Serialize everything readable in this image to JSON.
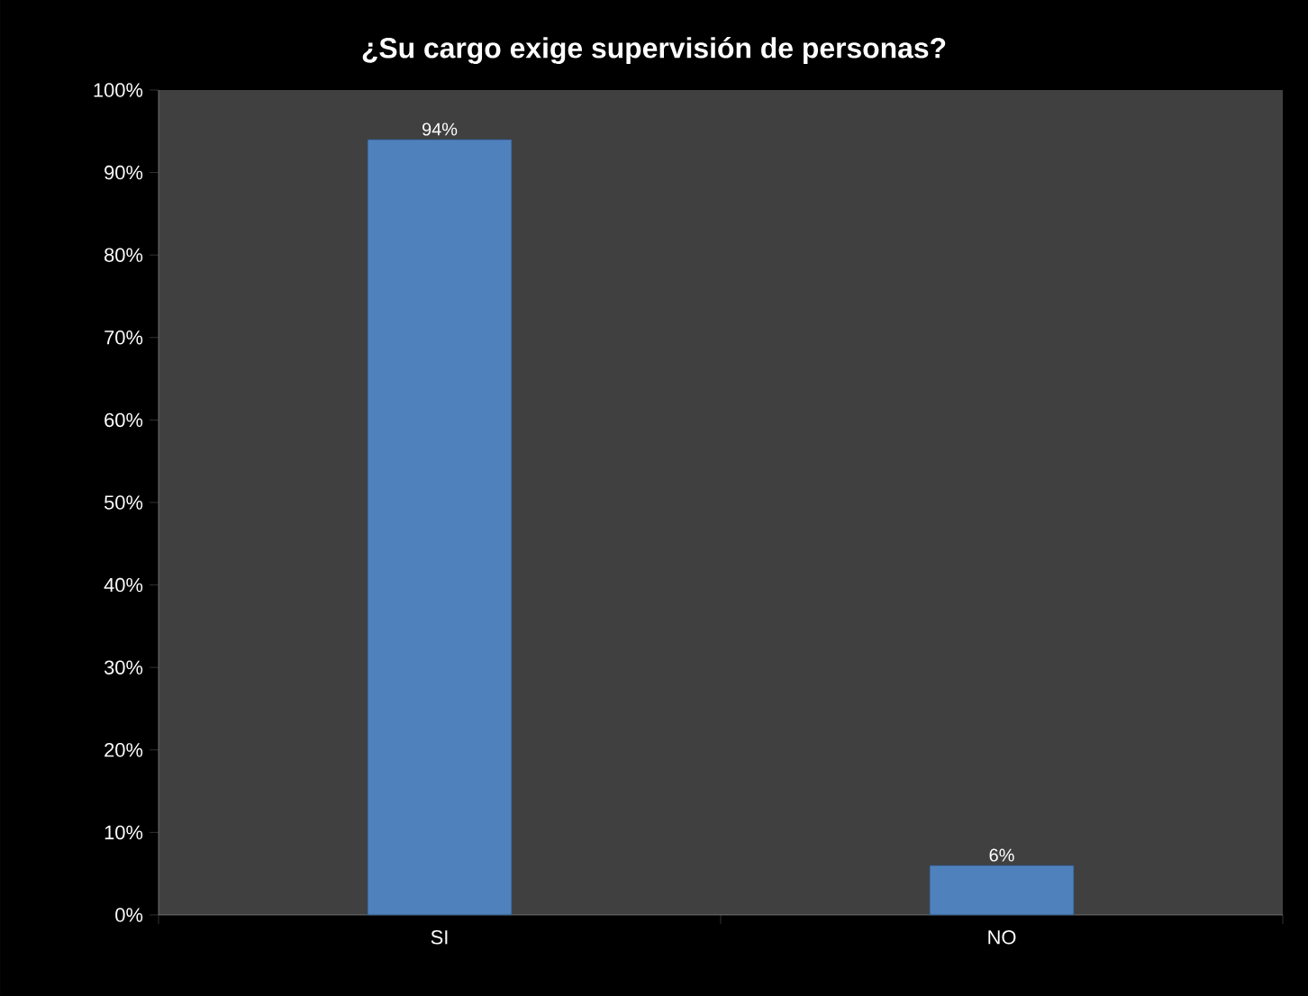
{
  "chart_data": {
    "type": "bar",
    "title": "¿Su cargo exige supervisión de personas?",
    "categories": [
      "SI",
      "NO"
    ],
    "values": [
      94,
      6
    ],
    "value_labels": [
      "94%",
      "6%"
    ],
    "color": "#4f81bd",
    "ylim": [
      0,
      100
    ],
    "yticks": [
      {
        "value": 0,
        "label": "0%"
      },
      {
        "value": 10,
        "label": "10%"
      },
      {
        "value": 20,
        "label": "20%"
      },
      {
        "value": 30,
        "label": "30%"
      },
      {
        "value": 40,
        "label": "40%"
      },
      {
        "value": 50,
        "label": "50%"
      },
      {
        "value": 60,
        "label": "60%"
      },
      {
        "value": 70,
        "label": "70%"
      },
      {
        "value": 80,
        "label": "80%"
      },
      {
        "value": 90,
        "label": "90%"
      },
      {
        "value": 100,
        "label": "100%"
      }
    ],
    "grid": false
  }
}
